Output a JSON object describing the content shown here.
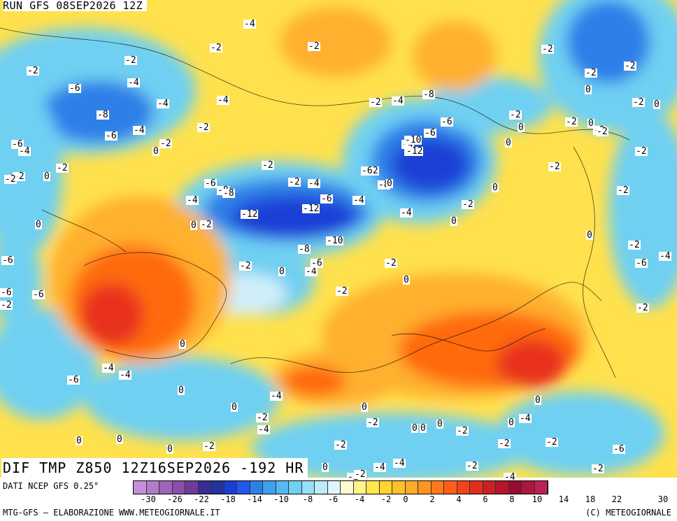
{
  "header": {
    "run_label": "RUN GFS 08SEP2026 12Z"
  },
  "map": {
    "title": "DIF TMP Z850 12Z16SEP2026 -192 HR",
    "colors": {
      "cold_deep": "#1a3fd6",
      "cold": "#2f7fe8",
      "cool": "#6fd0f2",
      "neutral": "#cfeefa",
      "mild": "#ffe14d",
      "warm": "#ffb02e",
      "hot": "#ff6a10",
      "very_hot": "#e8321a"
    },
    "labels": [
      {
        "t": "-4"
      },
      {
        "t": "-2"
      },
      {
        "t": "-2"
      },
      {
        "t": "-2"
      },
      {
        "t": "-2"
      },
      {
        "t": "-6"
      },
      {
        "t": "-4"
      },
      {
        "t": "-4"
      },
      {
        "t": "-4"
      },
      {
        "t": "-8"
      },
      {
        "t": "-6"
      },
      {
        "t": "-4"
      },
      {
        "t": "0"
      },
      {
        "t": "-2"
      },
      {
        "t": "-2"
      },
      {
        "t": "-6"
      },
      {
        "t": "-4"
      },
      {
        "t": "-2"
      },
      {
        "t": "0"
      },
      {
        "t": "-2"
      },
      {
        "t": "-2"
      },
      {
        "t": "-6"
      },
      {
        "t": "-8"
      },
      {
        "t": "-4"
      },
      {
        "t": "-2"
      },
      {
        "t": "-4"
      },
      {
        "t": "-12"
      },
      {
        "t": "-8"
      },
      {
        "t": "-6"
      },
      {
        "t": "-12"
      },
      {
        "t": "-10"
      },
      {
        "t": "-8"
      },
      {
        "t": "0"
      },
      {
        "t": "-2"
      },
      {
        "t": "0"
      },
      {
        "t": "-2"
      },
      {
        "t": "-4"
      },
      {
        "t": "-6"
      },
      {
        "t": "-2"
      },
      {
        "t": "0"
      },
      {
        "t": "-4"
      },
      {
        "t": "-2"
      },
      {
        "t": "-4"
      },
      {
        "t": "-2"
      },
      {
        "t": "-6"
      },
      {
        "t": "-4"
      },
      {
        "t": "-10"
      },
      {
        "t": "-12"
      },
      {
        "t": "-8"
      },
      {
        "t": "-6"
      },
      {
        "t": "-8"
      },
      {
        "t": "0"
      },
      {
        "t": "-6"
      },
      {
        "t": "-4"
      },
      {
        "t": "-2"
      },
      {
        "t": "0"
      },
      {
        "t": "0"
      },
      {
        "t": "-2"
      },
      {
        "t": "-2"
      },
      {
        "t": "0"
      },
      {
        "t": "-2"
      },
      {
        "t": "-2"
      },
      {
        "t": "0"
      },
      {
        "t": "0"
      },
      {
        "t": "-2"
      },
      {
        "t": "0"
      },
      {
        "t": "-2"
      },
      {
        "t": "-2"
      },
      {
        "t": "-2"
      },
      {
        "t": "-2"
      },
      {
        "t": "-2"
      },
      {
        "t": "0"
      },
      {
        "t": "-2"
      },
      {
        "t": "0"
      },
      {
        "t": "-2"
      },
      {
        "t": "-2"
      },
      {
        "t": "0"
      },
      {
        "t": "-2"
      },
      {
        "t": "-6"
      },
      {
        "t": "-4"
      },
      {
        "t": "-2"
      },
      {
        "t": "-6"
      },
      {
        "t": "-6"
      },
      {
        "t": "-6"
      },
      {
        "t": "-2"
      },
      {
        "t": "-2"
      },
      {
        "t": "-6"
      },
      {
        "t": "-4"
      },
      {
        "t": "-4"
      },
      {
        "t": "0"
      },
      {
        "t": "0"
      },
      {
        "t": "0"
      },
      {
        "t": "-2"
      },
      {
        "t": "-4"
      },
      {
        "t": "-4"
      },
      {
        "t": "0"
      },
      {
        "t": "-2"
      },
      {
        "t": "0"
      },
      {
        "t": "0"
      },
      {
        "t": "0"
      },
      {
        "t": "-2"
      },
      {
        "t": "-2"
      },
      {
        "t": "0"
      },
      {
        "t": "-4"
      },
      {
        "t": "-2"
      },
      {
        "t": "-6"
      },
      {
        "t": "-2"
      },
      {
        "t": "-2"
      },
      {
        "t": "-4"
      },
      {
        "t": "-4"
      },
      {
        "t": "-4"
      },
      {
        "t": "-2"
      },
      {
        "t": "0"
      },
      {
        "t": "-2"
      },
      {
        "t": "-2"
      },
      {
        "t": "0"
      },
      {
        "t": "0"
      },
      {
        "t": "0"
      },
      {
        "t": "-2"
      },
      {
        "t": "0"
      }
    ]
  },
  "legend": {
    "source_label": "DATI NCEP GFS 0.25°",
    "credit_left": "MTG-GFS — ELABORAZIONE WWW.METEOGIORNALE.IT",
    "credit_right": "(C) METEOGIORNALE",
    "tick_labels": [
      "-30",
      "-26",
      "-22",
      "-18",
      "-14",
      "-10",
      "-8",
      "-6",
      "-4",
      "-2",
      "0",
      "2",
      "4",
      "6",
      "8",
      "10",
      "14",
      "18",
      "22",
      "30"
    ],
    "swatch_colors": [
      "#c58fd8",
      "#b37cc9",
      "#9f63b8",
      "#8a4ea6",
      "#6f3c98",
      "#3b2c95",
      "#23329e",
      "#1a3fd6",
      "#2457e8",
      "#2f7fe8",
      "#3f9ff0",
      "#55b9f2",
      "#6fd0f2",
      "#94e0f6",
      "#bcecf9",
      "#dff6fc",
      "#fffbd0",
      "#fff38a",
      "#ffe74d",
      "#ffd52e",
      "#ffc02a",
      "#ffab25",
      "#ff9421",
      "#ff7a1a",
      "#ff5e15",
      "#f2441a",
      "#e0301d",
      "#cc1f24",
      "#b4142c",
      "#9a0b34",
      "#a8183f",
      "#c01f55"
    ]
  }
}
